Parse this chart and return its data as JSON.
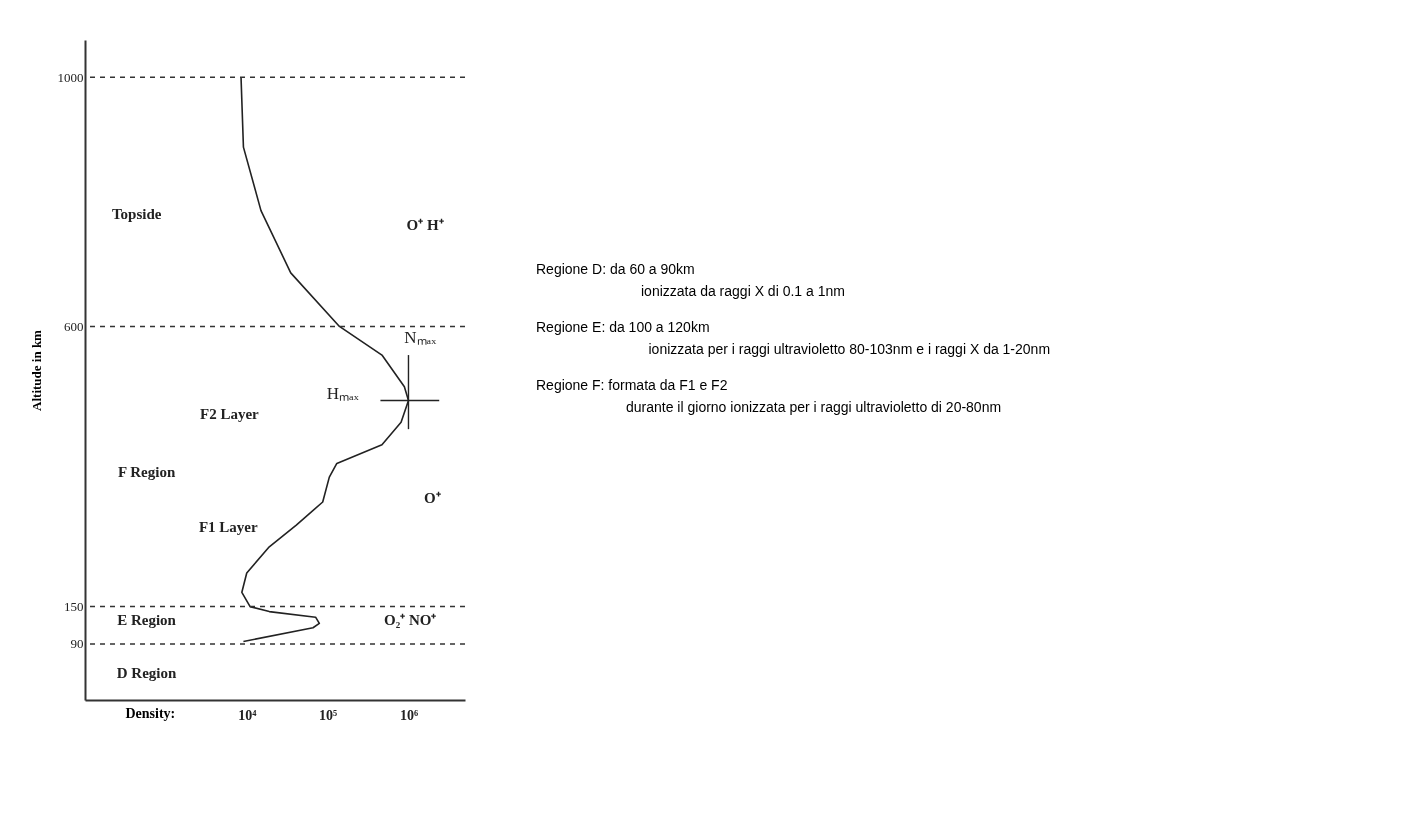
{
  "chart_data": {
    "type": "line",
    "xlabel": "Density:",
    "ylabel": "Altitude in km",
    "log": "x",
    "xlim": [
      100,
      5000000
    ],
    "xticks": [
      {
        "value": 10000,
        "label": "10⁴"
      },
      {
        "value": 100000,
        "label": "10⁵"
      },
      {
        "value": 1000000,
        "label": "10⁶"
      }
    ],
    "ylim": [
      0,
      1060
    ],
    "yticks": [
      90,
      150,
      600,
      {
        "value": 1000,
        "label": "1000"
      }
    ],
    "grid": false,
    "marker": "none",
    "line_style": "solid",
    "series": [
      {
        "color": "#222222",
        "x": [
          8500,
          9100,
          15000,
          35000,
          140000,
          470000,
          890000,
          1000000,
          810000,
          470000,
          130000,
          105000,
          87000,
          41000,
          19000,
          10000,
          8700,
          11000,
          19000,
          71000,
          79000,
          66000,
          9100
        ],
        "values": [
          1000,
          888,
          786,
          686,
          600,
          554,
          503,
          481,
          446,
          410,
          380,
          358,
          318,
          281,
          246,
          204,
          173,
          150,
          142,
          133,
          123,
          116,
          94
        ],
        "errors": [
          null,
          null,
          null,
          null,
          null,
          null,
          null,
          [
            435,
            554
          ],
          null,
          null,
          null,
          null,
          null,
          null,
          null,
          null,
          null,
          null,
          null,
          null,
          null,
          null,
          null
        ],
        "xerrors": [
          null,
          null,
          null,
          null,
          null,
          null,
          null,
          [
            450000,
            2400000
          ],
          null,
          null,
          null,
          null,
          null,
          null,
          null,
          null,
          null,
          null,
          null,
          null,
          null,
          null,
          null
        ]
      }
    ],
    "ref_lines": [
      {
        "axis": "y",
        "value": 1000,
        "line_style": "dashed"
      },
      {
        "axis": "y",
        "value": 600,
        "line_style": "dashed"
      },
      {
        "axis": "y",
        "value": 150,
        "line_style": "dashed"
      },
      {
        "axis": "y",
        "value": 90,
        "line_style": "dashed"
      }
    ],
    "annotations": [
      "Topside",
      "O⁺ H⁺",
      "Nₘₐₓ",
      "Hₘₐₓ",
      "F2 Layer",
      "F Region",
      "O⁺",
      "F1 Layer",
      "E Region",
      "O₂⁺ NO⁺",
      "D Region",
      "Regione D: da 60 a 90km",
      "              ionizzata da raggi X di 0.1 a 1nm",
      "Regione E: da 100 a 120km",
      "               ionizzata per i raggi ultravioletto 80-103nm e i raggi X da 1-20nm",
      "Regione F: formata da F1 e F2",
      "            durante il giorno ionizzata per i raggi ultravioletto di 20-80nm"
    ]
  }
}
